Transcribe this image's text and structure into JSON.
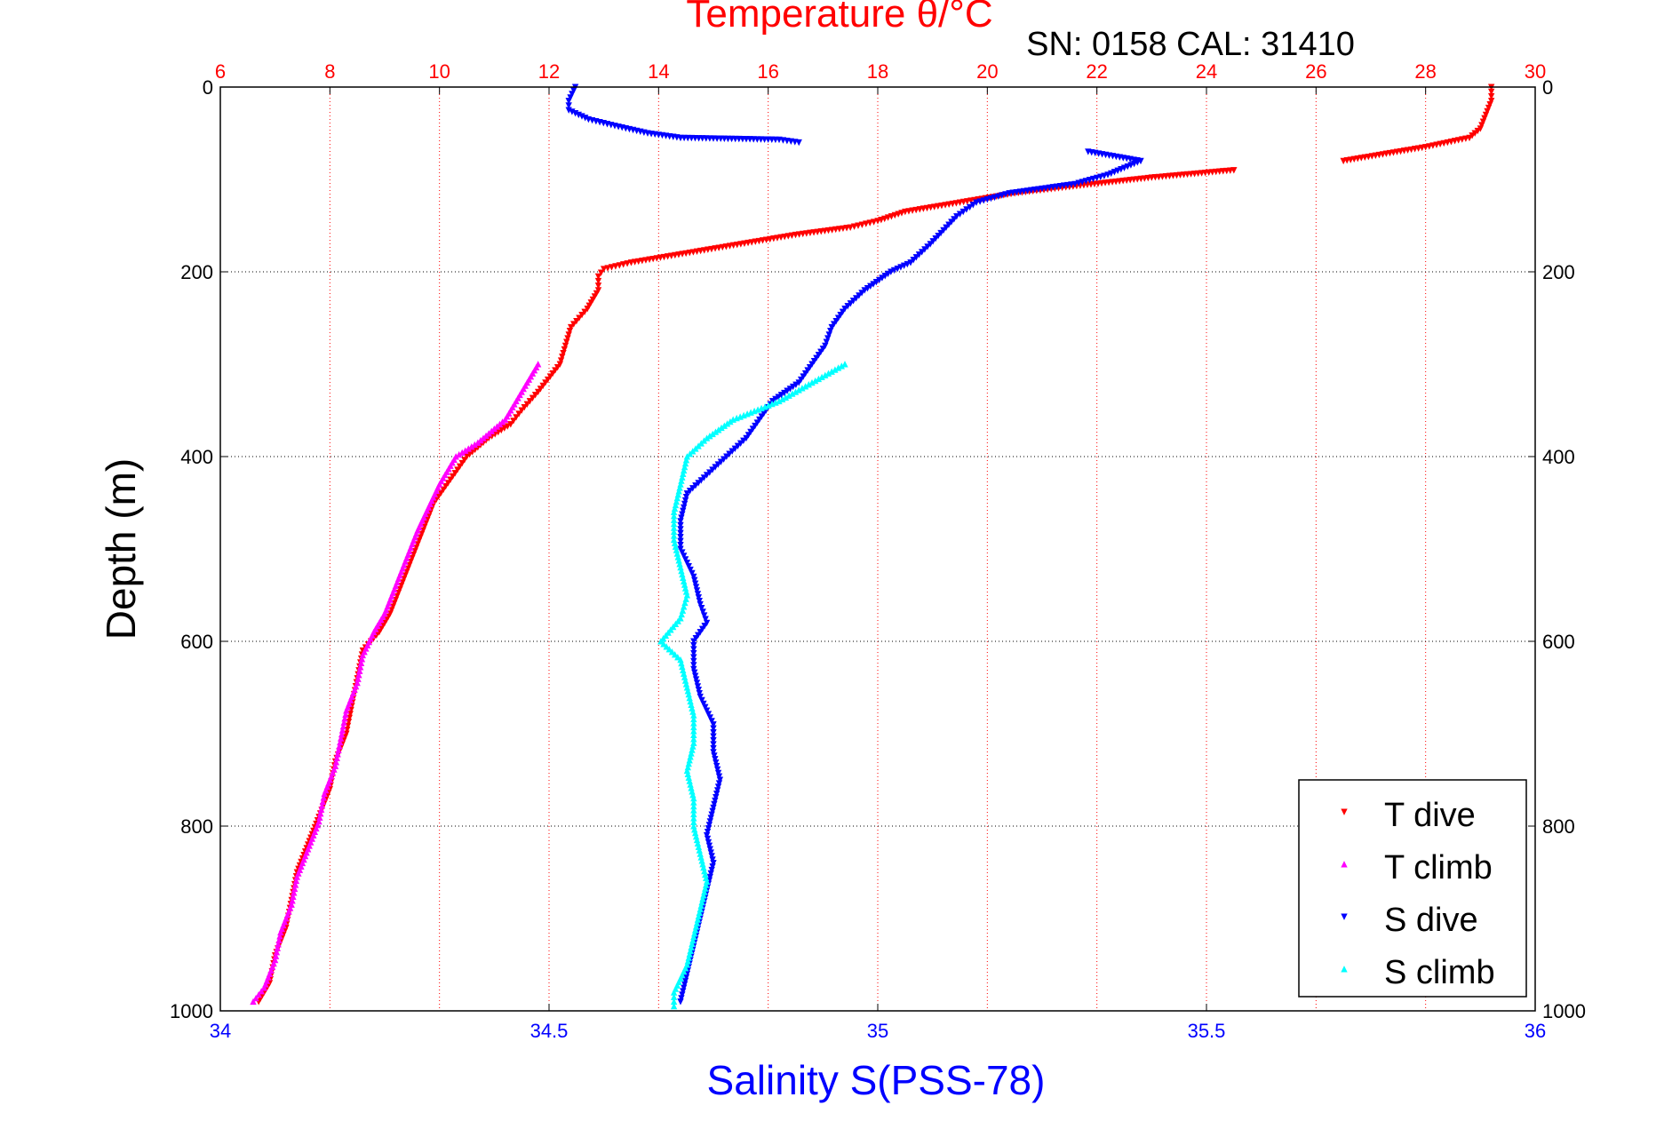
{
  "chart_data": {
    "type": "scatter",
    "title": "Temperature θ/°C",
    "annotation": "SN: 0158  CAL: 31410",
    "ylabel": "Depth (m)",
    "xlabel": "Salinity S(PSS-78)",
    "y_reversed": true,
    "ylim": [
      0,
      1000
    ],
    "y_ticks": [
      0,
      200,
      400,
      600,
      800,
      1000
    ],
    "temperature_axis": {
      "position": "top",
      "range": [
        6,
        30
      ],
      "ticks": [
        6,
        8,
        10,
        12,
        14,
        16,
        18,
        20,
        22,
        24,
        26,
        28,
        30
      ],
      "color": "#ff0000"
    },
    "salinity_axis": {
      "position": "bottom",
      "range": [
        34,
        36
      ],
      "ticks": [
        "34",
        "34.5",
        "35",
        "35.5",
        "36"
      ],
      "tick_values": [
        34,
        34.5,
        35,
        35.5,
        36
      ],
      "color": "#0000ff"
    },
    "grid": {
      "vertical": "dotted-red",
      "horizontal": "dotted-black"
    },
    "legend_position": "bottom-right",
    "series": [
      {
        "name": "T dive",
        "axis": "temperature",
        "color": "#ff0000",
        "marker": "triangle-down",
        "points": [
          [
            29.2,
            0
          ],
          [
            29.2,
            15
          ],
          [
            29.1,
            30
          ],
          [
            29.0,
            45
          ],
          [
            28.8,
            55
          ],
          [
            28.0,
            65
          ],
          [
            26.5,
            80
          ],
          [
            24.5,
            90
          ],
          [
            23.0,
            98
          ],
          [
            21.5,
            108
          ],
          [
            20.5,
            115
          ],
          [
            19.5,
            125
          ],
          [
            18.5,
            135
          ],
          [
            18.0,
            145
          ],
          [
            17.5,
            152
          ],
          [
            16.5,
            160
          ],
          [
            15.5,
            170
          ],
          [
            14.5,
            180
          ],
          [
            13.5,
            190
          ],
          [
            13.0,
            197
          ],
          [
            12.9,
            205
          ],
          [
            12.9,
            220
          ],
          [
            12.7,
            240
          ],
          [
            12.4,
            260
          ],
          [
            12.3,
            280
          ],
          [
            12.2,
            300
          ],
          [
            11.8,
            330
          ],
          [
            11.5,
            350
          ],
          [
            11.3,
            365
          ],
          [
            10.9,
            380
          ],
          [
            10.5,
            400
          ],
          [
            10.2,
            425
          ],
          [
            9.9,
            450
          ],
          [
            9.7,
            480
          ],
          [
            9.5,
            510
          ],
          [
            9.3,
            540
          ],
          [
            9.1,
            570
          ],
          [
            8.9,
            590
          ],
          [
            8.6,
            610
          ],
          [
            8.5,
            640
          ],
          [
            8.4,
            670
          ],
          [
            8.3,
            700
          ],
          [
            8.1,
            730
          ],
          [
            8.0,
            760
          ],
          [
            7.8,
            790
          ],
          [
            7.6,
            820
          ],
          [
            7.4,
            850
          ],
          [
            7.3,
            880
          ],
          [
            7.2,
            910
          ],
          [
            7.0,
            940
          ],
          [
            6.9,
            970
          ],
          [
            6.7,
            990
          ]
        ]
      },
      {
        "name": "T climb",
        "axis": "temperature",
        "color": "#ff00ff",
        "marker": "triangle-up",
        "points": [
          [
            11.8,
            300
          ],
          [
            11.5,
            330
          ],
          [
            11.2,
            360
          ],
          [
            10.7,
            385
          ],
          [
            10.3,
            400
          ],
          [
            10.0,
            430
          ],
          [
            9.8,
            455
          ],
          [
            9.6,
            480
          ],
          [
            9.4,
            510
          ],
          [
            9.2,
            540
          ],
          [
            9.0,
            570
          ],
          [
            8.8,
            590
          ],
          [
            8.6,
            615
          ],
          [
            8.5,
            645
          ],
          [
            8.3,
            675
          ],
          [
            8.2,
            705
          ],
          [
            8.1,
            735
          ],
          [
            7.9,
            765
          ],
          [
            7.8,
            795
          ],
          [
            7.6,
            825
          ],
          [
            7.4,
            855
          ],
          [
            7.3,
            885
          ],
          [
            7.1,
            915
          ],
          [
            7.0,
            945
          ],
          [
            6.8,
            975
          ],
          [
            6.6,
            990
          ]
        ]
      },
      {
        "name": "S dive",
        "axis": "salinity",
        "color": "#0000ff",
        "marker": "triangle-down",
        "points": [
          [
            34.54,
            0
          ],
          [
            34.53,
            15
          ],
          [
            34.53,
            25
          ],
          [
            34.56,
            35
          ],
          [
            34.6,
            42
          ],
          [
            34.65,
            50
          ],
          [
            34.7,
            55
          ],
          [
            34.85,
            57
          ],
          [
            34.88,
            60
          ],
          [
            35.32,
            70
          ],
          [
            35.4,
            80
          ],
          [
            35.35,
            95
          ],
          [
            35.3,
            105
          ],
          [
            35.2,
            115
          ],
          [
            35.15,
            125
          ],
          [
            35.12,
            140
          ],
          [
            35.1,
            155
          ],
          [
            35.08,
            170
          ],
          [
            35.05,
            190
          ],
          [
            35.02,
            200
          ],
          [
            34.98,
            220
          ],
          [
            34.95,
            240
          ],
          [
            34.93,
            260
          ],
          [
            34.92,
            280
          ],
          [
            34.9,
            300
          ],
          [
            34.88,
            320
          ],
          [
            34.84,
            340
          ],
          [
            34.82,
            360
          ],
          [
            34.8,
            380
          ],
          [
            34.77,
            400
          ],
          [
            34.74,
            420
          ],
          [
            34.71,
            440
          ],
          [
            34.7,
            470
          ],
          [
            34.7,
            500
          ],
          [
            34.72,
            530
          ],
          [
            34.73,
            560
          ],
          [
            34.74,
            580
          ],
          [
            34.72,
            600
          ],
          [
            34.72,
            630
          ],
          [
            34.73,
            660
          ],
          [
            34.75,
            690
          ],
          [
            34.75,
            720
          ],
          [
            34.76,
            750
          ],
          [
            34.75,
            780
          ],
          [
            34.74,
            810
          ],
          [
            34.75,
            840
          ],
          [
            34.74,
            870
          ],
          [
            34.73,
            900
          ],
          [
            34.72,
            930
          ],
          [
            34.71,
            960
          ],
          [
            34.7,
            990
          ]
        ]
      },
      {
        "name": "S climb",
        "axis": "salinity",
        "color": "#00ffff",
        "marker": "triangle-up",
        "points": [
          [
            34.95,
            300
          ],
          [
            34.9,
            320
          ],
          [
            34.85,
            340
          ],
          [
            34.78,
            360
          ],
          [
            34.74,
            380
          ],
          [
            34.71,
            400
          ],
          [
            34.7,
            430
          ],
          [
            34.69,
            460
          ],
          [
            34.69,
            490
          ],
          [
            34.7,
            520
          ],
          [
            34.71,
            550
          ],
          [
            34.7,
            575
          ],
          [
            34.67,
            600
          ],
          [
            34.7,
            620
          ],
          [
            34.71,
            650
          ],
          [
            34.72,
            680
          ],
          [
            34.72,
            710
          ],
          [
            34.71,
            740
          ],
          [
            34.72,
            770
          ],
          [
            34.72,
            800
          ],
          [
            34.73,
            830
          ],
          [
            34.74,
            860
          ],
          [
            34.73,
            890
          ],
          [
            34.72,
            920
          ],
          [
            34.71,
            950
          ],
          [
            34.69,
            980
          ],
          [
            34.69,
            995
          ]
        ]
      }
    ]
  }
}
